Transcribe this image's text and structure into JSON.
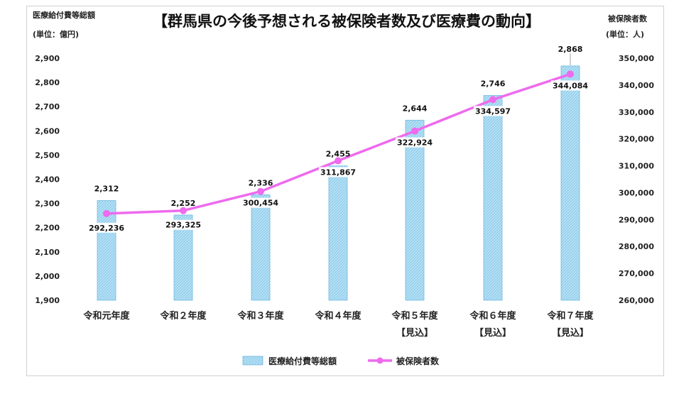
{
  "chart_data": {
    "type": "bar",
    "title": "【群馬県の今後予想される被保険者数及び医療費の動向】",
    "y_left_label": "医療給付費等総額",
    "y_left_unit": "(単位：億円)",
    "y_right_label": "被保険者数",
    "y_right_unit": "(単位：人)",
    "categories": [
      "令和元年度",
      "令和２年度",
      "令和３年度",
      "令和４年度",
      "令和５年度",
      "令和６年度",
      "令和７年度"
    ],
    "category_sublabels": [
      "",
      "",
      "",
      "",
      "【見込】",
      "【見込】",
      "【見込】"
    ],
    "series": [
      {
        "name": "医療給付費等総額",
        "type": "bar",
        "axis": "left",
        "values": [
          2312,
          2252,
          2336,
          2455,
          2644,
          2746,
          2868
        ],
        "labels": [
          "2,312",
          "2,252",
          "2,336",
          "2,455",
          "2,644",
          "2,746",
          "2,868"
        ],
        "color": "#9ad3ef"
      },
      {
        "name": "被保険者数",
        "type": "line",
        "axis": "right",
        "values": [
          292236,
          293325,
          300454,
          311867,
          322924,
          334597,
          344084
        ],
        "labels": [
          "292,236",
          "293,325",
          "300,454",
          "311,867",
          "322,924",
          "334,597",
          "344,084"
        ],
        "color": "#ee6aee"
      }
    ],
    "y_left_ticks": [
      "1,900",
      "2,000",
      "2,100",
      "2,200",
      "2,300",
      "2,400",
      "2,500",
      "2,600",
      "2,700",
      "2,800",
      "2,900"
    ],
    "y_left_range": [
      1900,
      2900
    ],
    "y_right_ticks": [
      "260,000",
      "270,000",
      "280,000",
      "290,000",
      "300,000",
      "310,000",
      "320,000",
      "330,000",
      "340,000",
      "350,000"
    ],
    "y_right_range": [
      260000,
      350000
    ],
    "legend_position": "bottom",
    "grid": false
  }
}
